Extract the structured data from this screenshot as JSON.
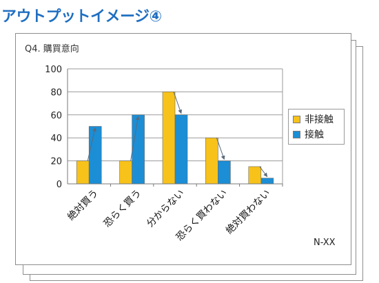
{
  "header": {
    "title": "アウトプットイメージ④"
  },
  "panel": {
    "title": "Q4. 購買意向",
    "footnote": "N-XX"
  },
  "colors": {
    "series_0": "#f7c21a",
    "series_1": "#1b8ed6",
    "grid": "#9a9a9a",
    "arrow": "#5a6a7a"
  },
  "chart_data": {
    "type": "bar",
    "title": "Q4. 購買意向",
    "categories": [
      "絶対買う",
      "恐らく買う",
      "分からない",
      "恐らく買わない",
      "絶対買わない"
    ],
    "series": [
      {
        "name": "非接触",
        "values": [
          20,
          20,
          80,
          40,
          15
        ]
      },
      {
        "name": "接触",
        "values": [
          50,
          60,
          60,
          20,
          5
        ]
      }
    ],
    "ylim": [
      0,
      100
    ],
    "yticks": [
      0,
      20,
      40,
      60,
      80,
      100
    ],
    "grid": true,
    "legend_position": "right",
    "annotations": "arrows from 非接触 bar top to 接触 bar top in each category"
  }
}
